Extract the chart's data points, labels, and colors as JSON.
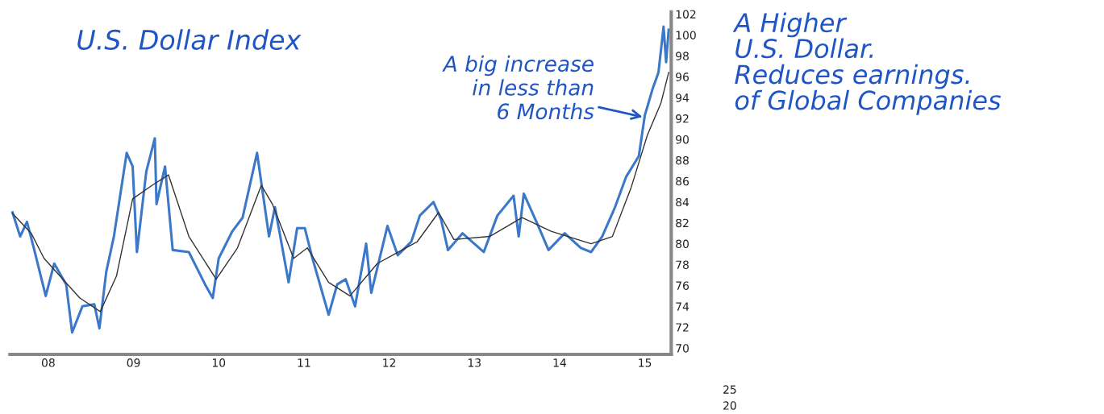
{
  "chart_data": [
    {
      "type": "line",
      "title": "U.S. Dollar Index",
      "xlim": [
        2007.55,
        2015.31
      ],
      "ylim": [
        69.4,
        102.2
      ],
      "xticks": [
        {
          "value": 2008,
          "label": "08"
        },
        {
          "value": 2009,
          "label": "09"
        },
        {
          "value": 2010,
          "label": "10"
        },
        {
          "value": 2011,
          "label": "11"
        },
        {
          "value": 2012,
          "label": "12"
        },
        {
          "value": 2013,
          "label": "13"
        },
        {
          "value": 2014,
          "label": "14"
        },
        {
          "value": 2015,
          "label": "15"
        }
      ],
      "yticks": [
        70,
        72,
        74,
        76,
        78,
        80,
        82,
        84,
        86,
        88,
        90,
        92,
        94,
        96,
        98,
        100,
        102
      ],
      "grid": false,
      "legend": false,
      "marker": "none",
      "line_style": "solid",
      "series": [
        {
          "color": "#3b78c9",
          "x": [
            2007.58,
            2007.67,
            2007.75,
            2007.83,
            2007.97,
            2008.07,
            2008.21,
            2008.28,
            2008.4,
            2008.54,
            2008.6,
            2008.68,
            2008.77,
            2008.92,
            2008.99,
            2009.04,
            2009.15,
            2009.25,
            2009.27,
            2009.37,
            2009.46,
            2009.65,
            2009.84,
            2009.93,
            2010.0,
            2010.16,
            2010.28,
            2010.45,
            2010.59,
            2010.66,
            2010.82,
            2010.92,
            2011.01,
            2011.1,
            2011.29,
            2011.39,
            2011.49,
            2011.6,
            2011.73,
            2011.79,
            2011.98,
            2012.1,
            2012.26,
            2012.36,
            2012.52,
            2012.61,
            2012.69,
            2012.86,
            2013.11,
            2013.27,
            2013.46,
            2013.52,
            2013.58,
            2013.75,
            2013.87,
            2014.06,
            2014.25,
            2014.37,
            2014.5,
            2014.65,
            2014.78,
            2014.93,
            2015.0,
            2015.09,
            2015.16,
            2015.22,
            2015.25,
            2015.28
          ],
          "values": [
            83.0,
            80.7,
            82.1,
            79.6,
            75.0,
            78.1,
            76.1,
            71.5,
            74.0,
            74.2,
            71.9,
            77.3,
            80.7,
            88.7,
            87.4,
            79.2,
            86.9,
            90.1,
            83.8,
            87.4,
            79.4,
            79.2,
            76.1,
            74.8,
            78.6,
            81.2,
            82.5,
            88.7,
            80.7,
            83.5,
            76.3,
            81.5,
            81.5,
            78.6,
            73.2,
            76.1,
            76.6,
            74.0,
            80.0,
            75.3,
            81.7,
            78.9,
            80.2,
            82.7,
            84.0,
            82.3,
            79.4,
            81.0,
            79.2,
            82.7,
            84.6,
            80.7,
            84.8,
            81.7,
            79.4,
            81.0,
            79.6,
            79.2,
            80.7,
            83.5,
            86.4,
            88.4,
            92.3,
            94.8,
            96.4,
            100.8,
            97.4,
            100.5
          ]
        },
        {
          "color": "#333333",
          "x": [
            2007.58,
            2007.8,
            2007.95,
            2008.37,
            2008.61,
            2008.8,
            2008.99,
            2009.22,
            2009.41,
            2009.65,
            2009.97,
            2010.22,
            2010.5,
            2010.63,
            2010.88,
            2011.04,
            2011.29,
            2011.54,
            2011.86,
            2012.33,
            2012.58,
            2012.76,
            2013.18,
            2013.56,
            2013.9,
            2014.37,
            2014.62,
            2014.84,
            2015.03,
            2015.19,
            2015.28
          ],
          "values": [
            82.9,
            81.0,
            78.6,
            74.8,
            73.5,
            76.9,
            84.3,
            85.6,
            86.6,
            80.7,
            76.6,
            79.6,
            85.6,
            83.8,
            78.6,
            79.6,
            76.3,
            75.0,
            78.1,
            80.2,
            83.0,
            80.4,
            80.7,
            82.5,
            81.2,
            80.0,
            80.7,
            85.4,
            90.4,
            93.5,
            96.4
          ]
        }
      ],
      "annotations": [
        {
          "text": "A big increase\nin less than\n6 Months",
          "x": 2015.0,
          "y": 92.1
        },
        "A Higher\nU.S. Dollar.\nReduces earnings.\nof Global Companies"
      ]
    },
    {
      "type": "other",
      "annotations": [
        "25",
        "20"
      ]
    }
  ]
}
